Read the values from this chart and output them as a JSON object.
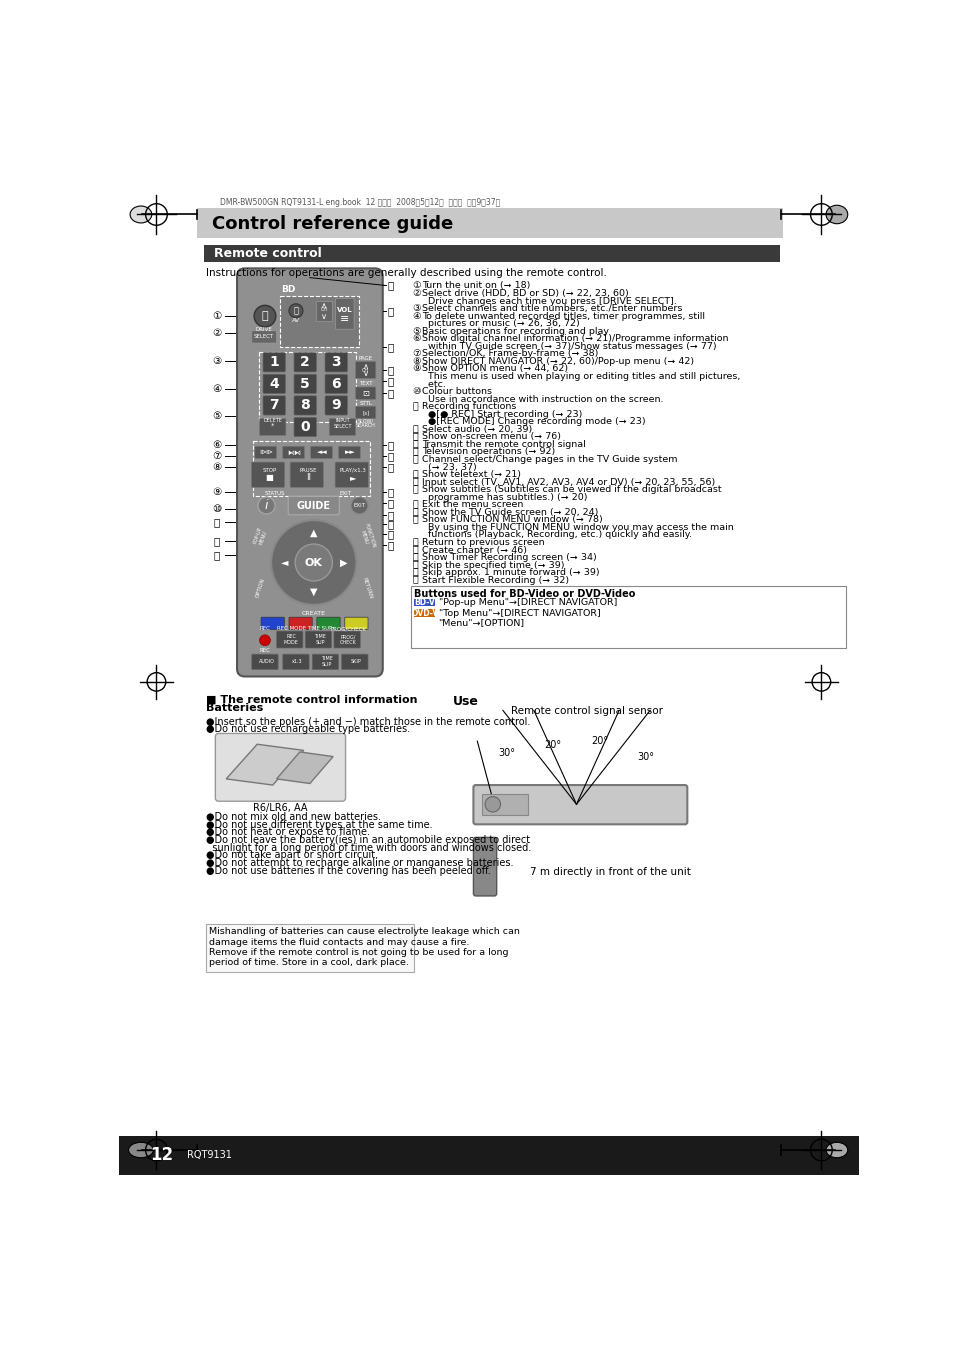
{
  "title": "Control reference guide",
  "title_bg": "#c8c8c8",
  "section_title": "Remote control",
  "section_bg": "#3a3a3a",
  "page_bg": "#ffffff",
  "instruction_text": "Instructions for operations are generally described using the remote control.",
  "arrow_right": "⇒",
  "bullet": "●",
  "arrow_pg": "➞",
  "bd_video_title": "Buttons used for BD-Video or DVD-Video",
  "use_title": "Use",
  "use_subtitle": "Remote control signal sensor",
  "distance_text": "7 m directly in front of the unit",
  "batteries_title_line1": "■ The remote control information",
  "batteries_title_line2": "Batteries",
  "battery_label": "R6/LR6, AA",
  "batteries_text1_line1": "●Insert so the poles (+ and −) match those in the remote control.",
  "batteries_text1_line2": "●Do not use rechargeable type batteries.",
  "warn1": "●Do not mix old and new batteries.",
  "warn2": "●Do not use different types at the same time.",
  "warn3": "●Do not heat or expose to flame.",
  "warn4": "●Do not leave the battery(ies) in an automobile exposed to direct",
  "warn4b": "  sunlight for a long period of time with doors and windows closed.",
  "warn5": "●Do not take apart or short circuit.",
  "warn6": "●Do not attempt to recharge alkaline or manganese batteries.",
  "warn7": "●Do not use batteries if the covering has been peeled off.",
  "mis1": "Mishandling of batteries can cause electrolyte leakage which can",
  "mis2": "damage items the fluid contacts and may cause a fire.",
  "mis3": "Remove if the remote control is not going to be used for a long",
  "mis4": "period of time. Store in a cool, dark place.",
  "page_num": "12",
  "code_text": "RQT9131",
  "header_text": "DMR-BW500GN RQT9131-L eng.book  12 ページ  2008年5月12日  月曜日  午前9時37分",
  "items": [
    [
      1,
      "Turn the unit on (➞ 18)"
    ],
    [
      2,
      "Select drive (HDD, BD or SD) (➞ 22, 23, 60)"
    ],
    [
      0,
      "  Drive changes each time you press [DRIVE SELECT]."
    ],
    [
      3,
      "Select channels and title numbers, etc./Enter numbers"
    ],
    [
      4,
      "To delete unwanted recorded titles, timer programmes, still"
    ],
    [
      0,
      "  pictures or music (➞ 26, 36, 72)"
    ],
    [
      5,
      "Basic operations for recording and play"
    ],
    [
      6,
      "Show digital channel information (➞ 21)/Programme information"
    ],
    [
      0,
      "  within TV Guide screen (➞ 37)/Show status messages (➞ 77)"
    ],
    [
      7,
      "Selection/OK, Frame-by-frame (➞ 38)"
    ],
    [
      8,
      "Show DIRECT NAVIGATOR (➞ 22, 60)/Pop-up menu (➞ 42)"
    ],
    [
      9,
      "Show OPTION menu (➞ 44, 62)"
    ],
    [
      0,
      "  This menu is used when playing or editing titles and still pictures,"
    ],
    [
      0,
      "  etc."
    ],
    [
      10,
      "Colour buttons"
    ],
    [
      0,
      "  Use in accordance with instruction on the screen."
    ],
    [
      11,
      "Recording functions"
    ],
    [
      0,
      "  ●[● REC] Start recording (➞ 23)"
    ],
    [
      0,
      "  ●[REC MODE] Change recording mode (➞ 23)"
    ],
    [
      12,
      "Select audio (➞ 20, 39)"
    ],
    [
      13,
      "Show on-screen menu (➞ 76)"
    ],
    [
      14,
      "Transmit the remote control signal"
    ],
    [
      15,
      "Television operations (➞ 92)"
    ],
    [
      16,
      "Channel select/Change pages in the TV Guide system"
    ],
    [
      0,
      "  (➞ 23, 37)"
    ],
    [
      17,
      "Show teletext (➞ 21)"
    ],
    [
      18,
      "Input select (TV, AV1, AV2, AV3, AV4 or DV) (➞ 20, 23, 55, 56)"
    ],
    [
      19,
      "Show subtitles (Subtitles can be viewed if the digital broadcast"
    ],
    [
      0,
      "  programme has subtitles.) (➞ 20)"
    ],
    [
      20,
      "Exit the menu screen"
    ],
    [
      21,
      "Show the TV Guide screen (➞ 20, 24)"
    ],
    [
      22,
      "Show FUNCTION MENU window (➞ 78)"
    ],
    [
      0,
      "  By using the FUNCTION MENU window you may access the main"
    ],
    [
      0,
      "  functions (Playback, Recording, etc.) quickly and easily."
    ],
    [
      23,
      "Return to previous screen"
    ],
    [
      24,
      "Create chapter (➞ 46)"
    ],
    [
      25,
      "Show Timer Recording screen (➞ 34)"
    ],
    [
      26,
      "Skip the specified time (➞ 39)"
    ],
    [
      27,
      "Skip approx. 1 minute forward (➞ 39)"
    ],
    [
      28,
      "Start Flexible Recording (➞ 32)"
    ]
  ]
}
